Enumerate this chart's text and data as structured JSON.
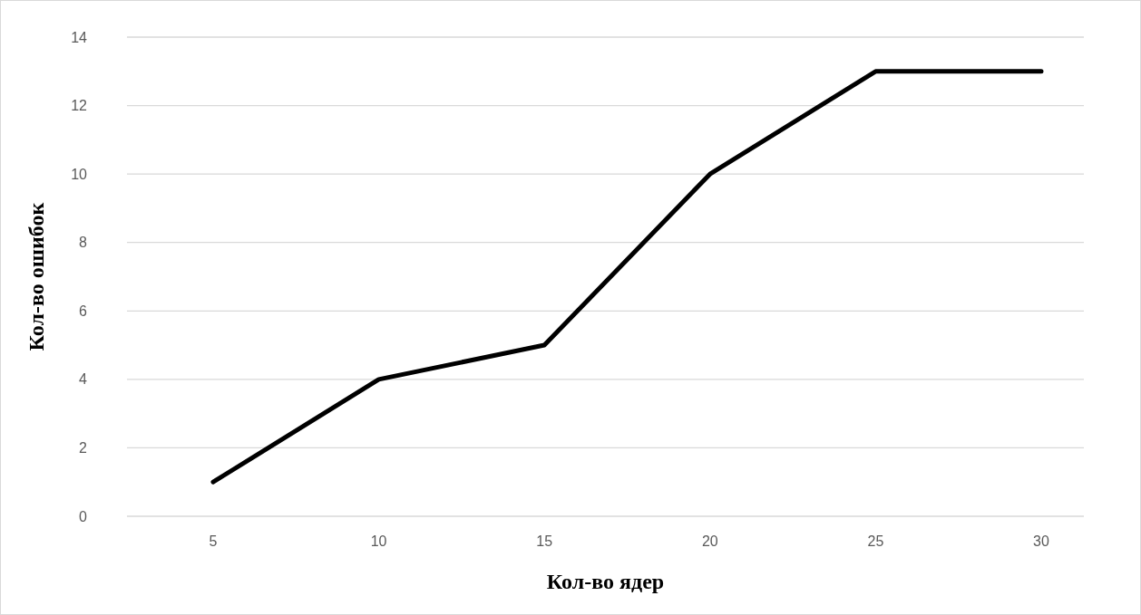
{
  "chart_data": {
    "type": "line",
    "xlabel": "Кол-во ядер",
    "ylabel": "Кол-во ошибок",
    "categories": [
      "5",
      "10",
      "15",
      "20",
      "25",
      "30"
    ],
    "series": [
      {
        "color": "#000000",
        "values": [
          1,
          4,
          5,
          10,
          13,
          13
        ]
      }
    ],
    "ylim": [
      0,
      14
    ],
    "yticks": [
      0,
      2,
      4,
      6,
      8,
      10,
      12,
      14
    ],
    "grid": "y",
    "marker": "none",
    "line_style": "solid"
  }
}
